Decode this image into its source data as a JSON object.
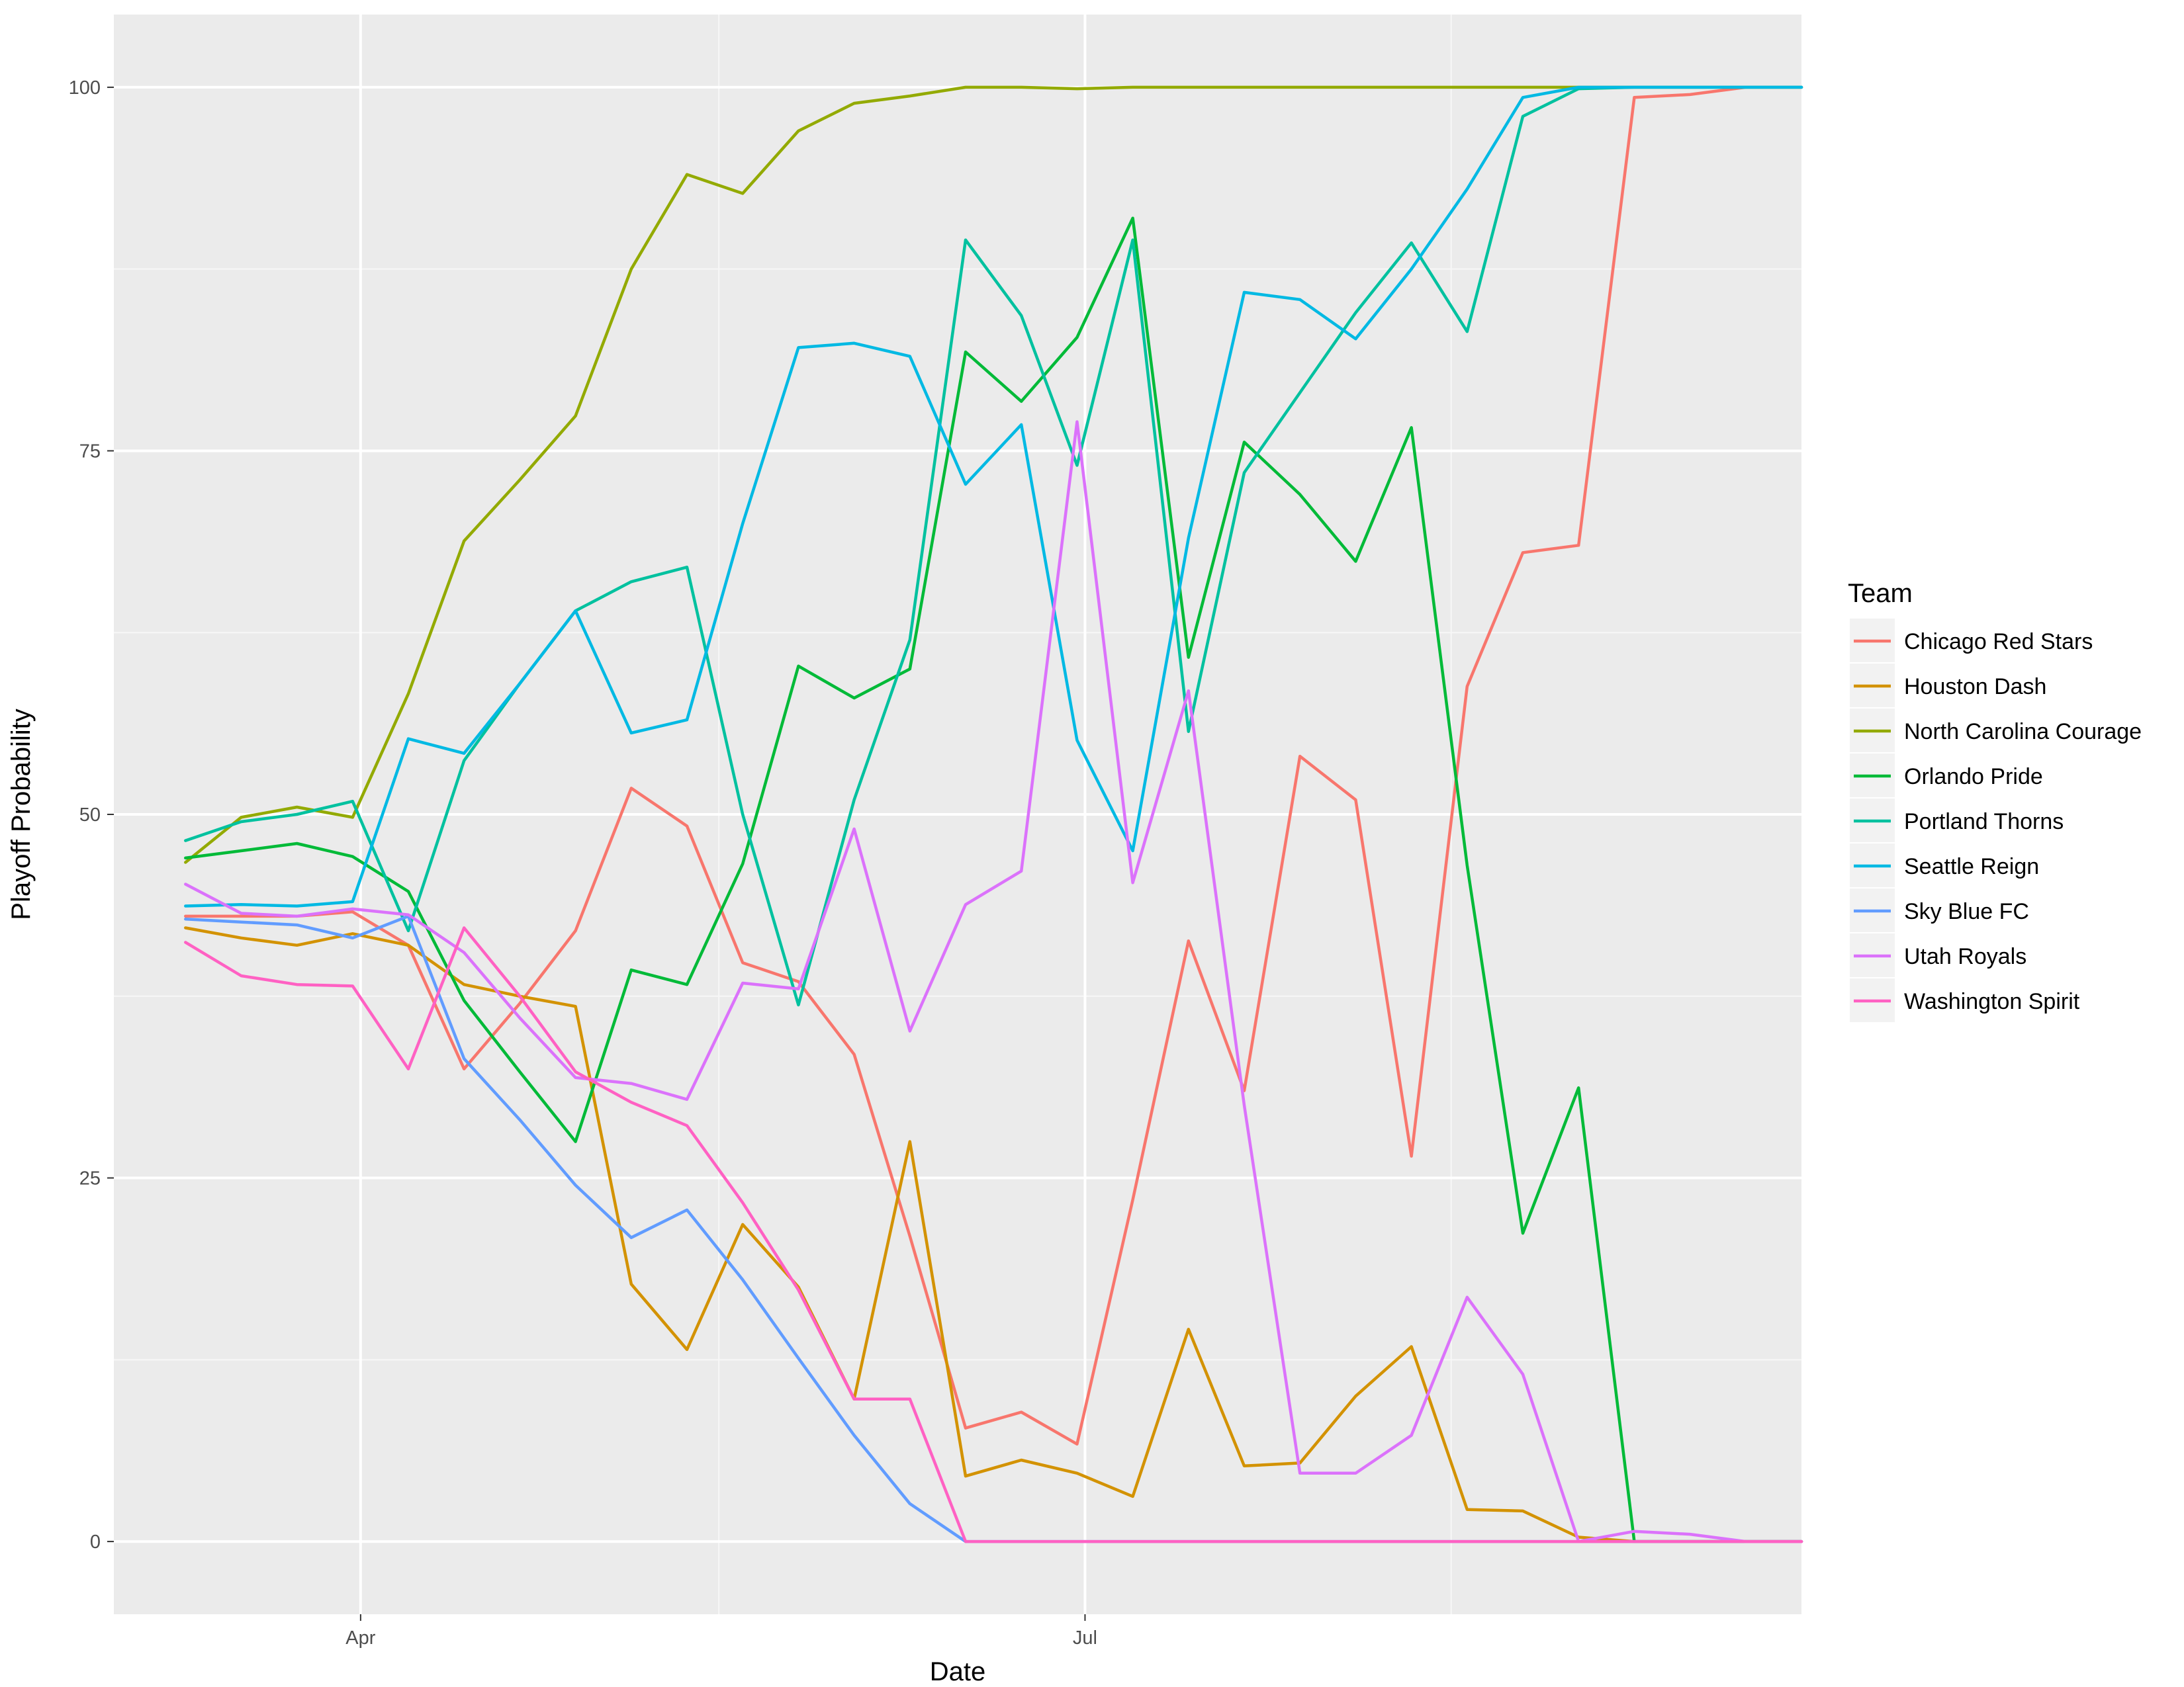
{
  "chart_data": {
    "type": "line",
    "title": "",
    "xlabel": "Date",
    "ylabel": "Playoff Probability",
    "x": [
      "2018-03-10",
      "2018-03-17",
      "2018-03-24",
      "2018-03-31",
      "2018-04-07",
      "2018-04-14",
      "2018-04-21",
      "2018-04-28",
      "2018-05-05",
      "2018-05-12",
      "2018-05-19",
      "2018-05-26",
      "2018-06-02",
      "2018-06-09",
      "2018-06-16",
      "2018-06-23",
      "2018-06-30",
      "2018-07-07",
      "2018-07-14",
      "2018-07-21",
      "2018-07-28",
      "2018-08-04",
      "2018-08-11",
      "2018-08-18",
      "2018-08-25",
      "2018-09-01",
      "2018-09-08",
      "2018-09-15",
      "2018-09-22",
      "2018-09-29"
    ],
    "xlim": [
      "2018-03-01",
      "2018-09-29"
    ],
    "x_ticks": [
      {
        "date": "2018-04-01",
        "label": "Apr"
      },
      {
        "date": "2018-07-01",
        "label": "Jul"
      }
    ],
    "x_minor_ticks": [
      "2018-05-16",
      "2018-08-16"
    ],
    "ylim": [
      -5,
      105
    ],
    "y_ticks": [
      0,
      25,
      50,
      75,
      100
    ],
    "y_minor_ticks": [
      12.5,
      37.5,
      62.5,
      87.5
    ],
    "grid": true,
    "legend": {
      "title": "Team",
      "position": "right"
    },
    "series": [
      {
        "name": "Chicago Red Stars",
        "color": "#F8766D",
        "values": [
          43.0,
          43.0,
          43.0,
          43.3,
          41.0,
          32.5,
          37.0,
          42.0,
          51.8,
          49.2,
          39.8,
          38.5,
          33.5,
          21.0,
          7.8,
          8.9,
          6.7,
          23.5,
          41.3,
          31.0,
          54.0,
          51.0,
          26.5,
          58.8,
          68.0,
          68.5,
          99.3,
          99.5,
          100,
          100
        ]
      },
      {
        "name": "Houston Dash",
        "color": "#D39200",
        "values": [
          42.2,
          41.5,
          41.0,
          41.8,
          41.0,
          38.3,
          37.5,
          36.8,
          17.7,
          13.2,
          21.8,
          17.5,
          9.8,
          27.5,
          4.5,
          5.6,
          4.7,
          3.1,
          14.6,
          5.2,
          5.4,
          10.0,
          13.4,
          2.2,
          2.1,
          0.3,
          0,
          0,
          0,
          0
        ]
      },
      {
        "name": "North Carolina Courage",
        "color": "#93AA00",
        "values": [
          46.7,
          49.8,
          50.5,
          49.8,
          58.3,
          68.8,
          73.0,
          77.4,
          87.5,
          94.0,
          92.7,
          97.0,
          98.9,
          99.4,
          100,
          100,
          99.9,
          100,
          100,
          100,
          100,
          100,
          100,
          100,
          100,
          100,
          100,
          100,
          100,
          100
        ]
      },
      {
        "name": "Orlando Pride",
        "color": "#00BA38",
        "values": [
          47.0,
          47.5,
          48.0,
          47.1,
          44.7,
          37.2,
          32.3,
          27.5,
          39.3,
          38.3,
          46.6,
          60.2,
          58.0,
          60.0,
          81.8,
          78.4,
          82.8,
          91.0,
          60.8,
          75.6,
          72.0,
          67.4,
          76.6,
          46.5,
          21.2,
          31.2,
          0,
          0,
          0,
          0
        ]
      },
      {
        "name": "Portland Thorns",
        "color": "#00C19F",
        "values": [
          48.2,
          49.5,
          50.0,
          50.9,
          42.0,
          53.7,
          59.0,
          64.0,
          66.0,
          67.0,
          50.0,
          36.9,
          51.0,
          62.0,
          89.5,
          84.3,
          74.0,
          89.5,
          55.7,
          73.5,
          79.0,
          84.5,
          89.3,
          83.2,
          98.0,
          99.9,
          100,
          100,
          100,
          100
        ]
      },
      {
        "name": "Seattle Reign",
        "color": "#00B9E3",
        "values": [
          43.7,
          43.8,
          43.7,
          44.0,
          55.2,
          54.2,
          59.0,
          64.0,
          55.6,
          56.5,
          70.0,
          82.1,
          82.4,
          81.5,
          72.7,
          76.8,
          55.1,
          47.5,
          69.0,
          85.9,
          85.4,
          82.7,
          87.5,
          93.0,
          99.3,
          100,
          100,
          100,
          100,
          100
        ]
      },
      {
        "name": "Sky Blue FC",
        "color": "#619CFF",
        "values": [
          42.8,
          42.6,
          42.4,
          41.5,
          43.0,
          33.2,
          29.0,
          24.5,
          20.9,
          22.8,
          18.0,
          12.6,
          7.3,
          2.6,
          0,
          0,
          0,
          0,
          0,
          0,
          0,
          0,
          0,
          0,
          0,
          0,
          0,
          0,
          0,
          0
        ]
      },
      {
        "name": "Utah Royals",
        "color": "#DB72FB",
        "values": [
          45.2,
          43.2,
          43.0,
          43.5,
          43.1,
          40.5,
          36.0,
          31.9,
          31.5,
          30.4,
          38.4,
          38.0,
          49.0,
          35.1,
          43.8,
          46.1,
          77.0,
          45.3,
          58.5,
          30.0,
          4.7,
          4.7,
          7.3,
          16.8,
          11.5,
          0,
          0.7,
          0.5,
          0,
          0
        ]
      },
      {
        "name": "Washington Spirit",
        "color": "#FF61C3",
        "values": [
          41.2,
          38.9,
          38.3,
          38.2,
          32.5,
          42.2,
          37.5,
          32.3,
          30.2,
          28.6,
          23.3,
          17.3,
          9.8,
          9.8,
          0,
          0,
          0,
          0,
          0,
          0,
          0,
          0,
          0,
          0,
          0,
          0,
          0,
          0,
          0,
          0
        ]
      }
    ]
  }
}
